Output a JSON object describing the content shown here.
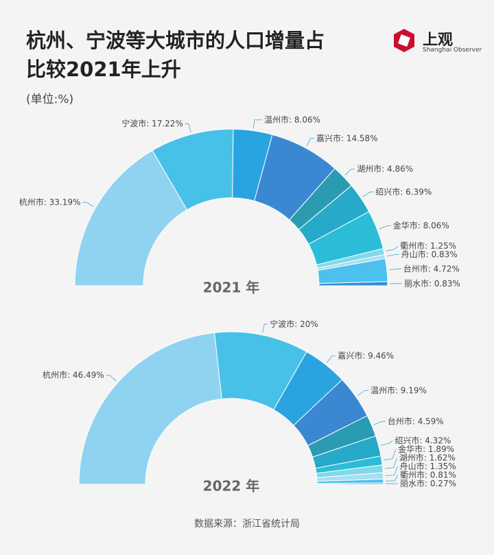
{
  "title": "杭州、宁波等大城市的人口增量占比较2021年上升",
  "subtitle": "(单位:%)",
  "source": "数据来源：浙江省统计局",
  "logo": {
    "name": "上观",
    "tagline": "Shanghai Observer"
  },
  "chart_data": [
    {
      "type": "donut",
      "title": "2021 年",
      "categories": [
        "杭州市",
        "宁波市",
        "温州市",
        "嘉兴市",
        "湖州市",
        "绍兴市",
        "金华市",
        "衢州市",
        "舟山市",
        "台州市",
        "丽水市"
      ],
      "values": [
        33.19,
        17.22,
        8.06,
        14.58,
        4.86,
        6.39,
        8.06,
        1.25,
        0.83,
        4.72,
        0.83
      ],
      "value_labels": [
        ": 33.19%",
        ": 17.22%",
        ": 8.06%",
        ": 14.58%",
        ": 4.86%",
        ": 6.39%",
        ": 8.06%",
        ": 1.25%",
        ": 0.83%",
        ": 4.72%",
        ": 0.83%"
      ],
      "colors": [
        "#8fd3f1",
        "#48c1e9",
        "#2aa4e0",
        "#3a88d1",
        "#2a9bb1",
        "#27a9c9",
        "#2bbdd8",
        "#7fd9e9",
        "#a9ddf1",
        "#4cc1ed",
        "#2f8fd9"
      ]
    },
    {
      "type": "donut",
      "title": "2022 年",
      "categories": [
        "杭州市",
        "宁波市",
        "嘉兴市",
        "温州市",
        "台州市",
        "绍兴市",
        "金华市",
        "湖州市",
        "舟山市",
        "衢州市",
        "丽水市"
      ],
      "values": [
        46.49,
        20,
        9.46,
        9.19,
        4.59,
        4.32,
        1.89,
        1.62,
        1.35,
        0.81,
        0.27
      ],
      "value_labels": [
        ": 46.49%",
        ": 20%",
        ": 9.46%",
        ": 9.19%",
        ": 4.59%",
        ": 4.32%",
        ": 1.89%",
        ": 1.62%",
        ": 1.35%",
        ": 0.81%",
        ": 0.27%"
      ],
      "colors": [
        "#8fd3f1",
        "#48c1e9",
        "#2aa4e0",
        "#3a88d1",
        "#2a9bb1",
        "#27a9c9",
        "#2bbdd8",
        "#7fd9e9",
        "#a9ddf1",
        "#4cc1ed",
        "#2f8fd9"
      ]
    }
  ]
}
